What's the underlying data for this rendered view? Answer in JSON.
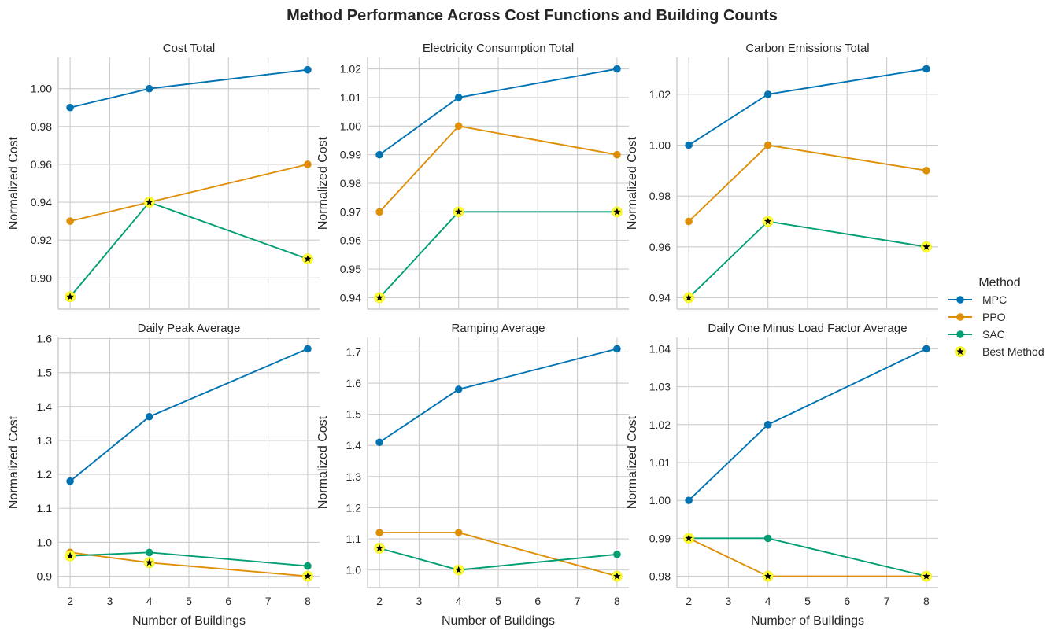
{
  "figure_title": "Method Performance Across Cost Functions and Building Counts",
  "legend": {
    "title": "Method",
    "entries": [
      {
        "label": "MPC",
        "color": "#0173b2",
        "marker": "circle"
      },
      {
        "label": "PPO",
        "color": "#de8f05",
        "marker": "circle"
      },
      {
        "label": "SAC",
        "color": "#029e73",
        "marker": "circle"
      },
      {
        "label": "Best Method",
        "color": "#000000",
        "marker": "star-yellow-halo"
      }
    ]
  },
  "chart_data": [
    {
      "type": "line",
      "title": "Cost Total",
      "xlabel": "",
      "ylabel": "Normalized Cost",
      "x": [
        2,
        4,
        8
      ],
      "xticks": [],
      "xlim": [
        1.7,
        8.3
      ],
      "ylim": [
        0.8835,
        1.0165
      ],
      "yticks": [
        "0.90",
        "0.92",
        "0.94",
        "0.96",
        "0.98",
        "1.00"
      ],
      "series": [
        {
          "name": "MPC",
          "values": [
            0.99,
            1.0,
            1.01
          ]
        },
        {
          "name": "PPO",
          "values": [
            0.93,
            0.94,
            0.96
          ]
        },
        {
          "name": "SAC",
          "values": [
            0.89,
            0.94,
            0.91
          ]
        }
      ],
      "best": [
        {
          "x": 2,
          "y": 0.89
        },
        {
          "x": 4,
          "y": 0.94
        },
        {
          "x": 8,
          "y": 0.91
        }
      ]
    },
    {
      "type": "line",
      "title": "Electricity Consumption Total",
      "xlabel": "",
      "ylabel": "Normalized Cost",
      "x": [
        2,
        4,
        8
      ],
      "xticks": [],
      "xlim": [
        1.7,
        8.3
      ],
      "ylim": [
        0.936,
        1.024
      ],
      "yticks": [
        "0.94",
        "0.95",
        "0.96",
        "0.97",
        "0.98",
        "0.99",
        "1.00",
        "1.01",
        "1.02"
      ],
      "series": [
        {
          "name": "MPC",
          "values": [
            0.99,
            1.01,
            1.02
          ]
        },
        {
          "name": "PPO",
          "values": [
            0.97,
            1.0,
            0.99
          ]
        },
        {
          "name": "SAC",
          "values": [
            0.94,
            0.97,
            0.97
          ]
        }
      ],
      "best": [
        {
          "x": 2,
          "y": 0.94
        },
        {
          "x": 4,
          "y": 0.97
        },
        {
          "x": 8,
          "y": 0.97
        }
      ]
    },
    {
      "type": "line",
      "title": "Carbon Emissions Total",
      "xlabel": "",
      "ylabel": "Normalized Cost",
      "x": [
        2,
        4,
        8
      ],
      "xticks": [],
      "xlim": [
        1.7,
        8.3
      ],
      "ylim": [
        0.9355,
        1.0345
      ],
      "yticks": [
        "0.94",
        "0.96",
        "0.98",
        "1.00",
        "1.02"
      ],
      "series": [
        {
          "name": "MPC",
          "values": [
            1.0,
            1.02,
            1.03
          ]
        },
        {
          "name": "PPO",
          "values": [
            0.97,
            1.0,
            0.99
          ]
        },
        {
          "name": "SAC",
          "values": [
            0.94,
            0.97,
            0.96
          ]
        }
      ],
      "best": [
        {
          "x": 2,
          "y": 0.94
        },
        {
          "x": 4,
          "y": 0.97
        },
        {
          "x": 8,
          "y": 0.96
        }
      ]
    },
    {
      "type": "line",
      "title": "Daily Peak Average",
      "xlabel": "Number of Buildings",
      "ylabel": "Normalized Cost",
      "x": [
        2,
        4,
        8
      ],
      "xticks": [
        "2",
        "3",
        "4",
        "5",
        "6",
        "7",
        "8"
      ],
      "xlim": [
        1.7,
        8.3
      ],
      "ylim": [
        0.8665,
        1.6035
      ],
      "yticks": [
        "0.9",
        "1.0",
        "1.1",
        "1.2",
        "1.3",
        "1.4",
        "1.5",
        "1.6"
      ],
      "series": [
        {
          "name": "MPC",
          "values": [
            1.18,
            1.37,
            1.57
          ]
        },
        {
          "name": "PPO",
          "values": [
            0.97,
            0.94,
            0.9
          ]
        },
        {
          "name": "SAC",
          "values": [
            0.96,
            0.97,
            0.93
          ]
        }
      ],
      "best": [
        {
          "x": 2,
          "y": 0.96
        },
        {
          "x": 4,
          "y": 0.94
        },
        {
          "x": 8,
          "y": 0.9
        }
      ]
    },
    {
      "type": "line",
      "title": "Ramping Average",
      "xlabel": "Number of Buildings",
      "ylabel": "Normalized Cost",
      "x": [
        2,
        4,
        8
      ],
      "xticks": [
        "2",
        "3",
        "4",
        "5",
        "6",
        "7",
        "8"
      ],
      "xlim": [
        1.7,
        8.3
      ],
      "ylim": [
        0.9435,
        1.7465
      ],
      "yticks": [
        "1.0",
        "1.1",
        "1.2",
        "1.3",
        "1.4",
        "1.5",
        "1.6",
        "1.7"
      ],
      "series": [
        {
          "name": "MPC",
          "values": [
            1.41,
            1.58,
            1.71
          ]
        },
        {
          "name": "PPO",
          "values": [
            1.12,
            1.12,
            0.98
          ]
        },
        {
          "name": "SAC",
          "values": [
            1.07,
            1.0,
            1.05
          ]
        }
      ],
      "best": [
        {
          "x": 2,
          "y": 1.07
        },
        {
          "x": 4,
          "y": 1.0
        },
        {
          "x": 8,
          "y": 0.98
        }
      ]
    },
    {
      "type": "line",
      "title": "Daily One Minus Load Factor Average",
      "xlabel": "Number of Buildings",
      "ylabel": "Normalized Cost",
      "x": [
        2,
        4,
        8
      ],
      "xticks": [
        "2",
        "3",
        "4",
        "5",
        "6",
        "7",
        "8"
      ],
      "xlim": [
        1.7,
        8.3
      ],
      "ylim": [
        0.977,
        1.043
      ],
      "yticks": [
        "0.98",
        "0.99",
        "1.00",
        "1.01",
        "1.02",
        "1.03",
        "1.04"
      ],
      "series": [
        {
          "name": "MPC",
          "values": [
            1.0,
            1.02,
            1.04
          ]
        },
        {
          "name": "PPO",
          "values": [
            0.99,
            0.98,
            0.98
          ]
        },
        {
          "name": "SAC",
          "values": [
            0.99,
            0.99,
            0.98
          ]
        }
      ],
      "best": [
        {
          "x": 2,
          "y": 0.99
        },
        {
          "x": 4,
          "y": 0.98
        },
        {
          "x": 8,
          "y": 0.98
        }
      ]
    }
  ]
}
